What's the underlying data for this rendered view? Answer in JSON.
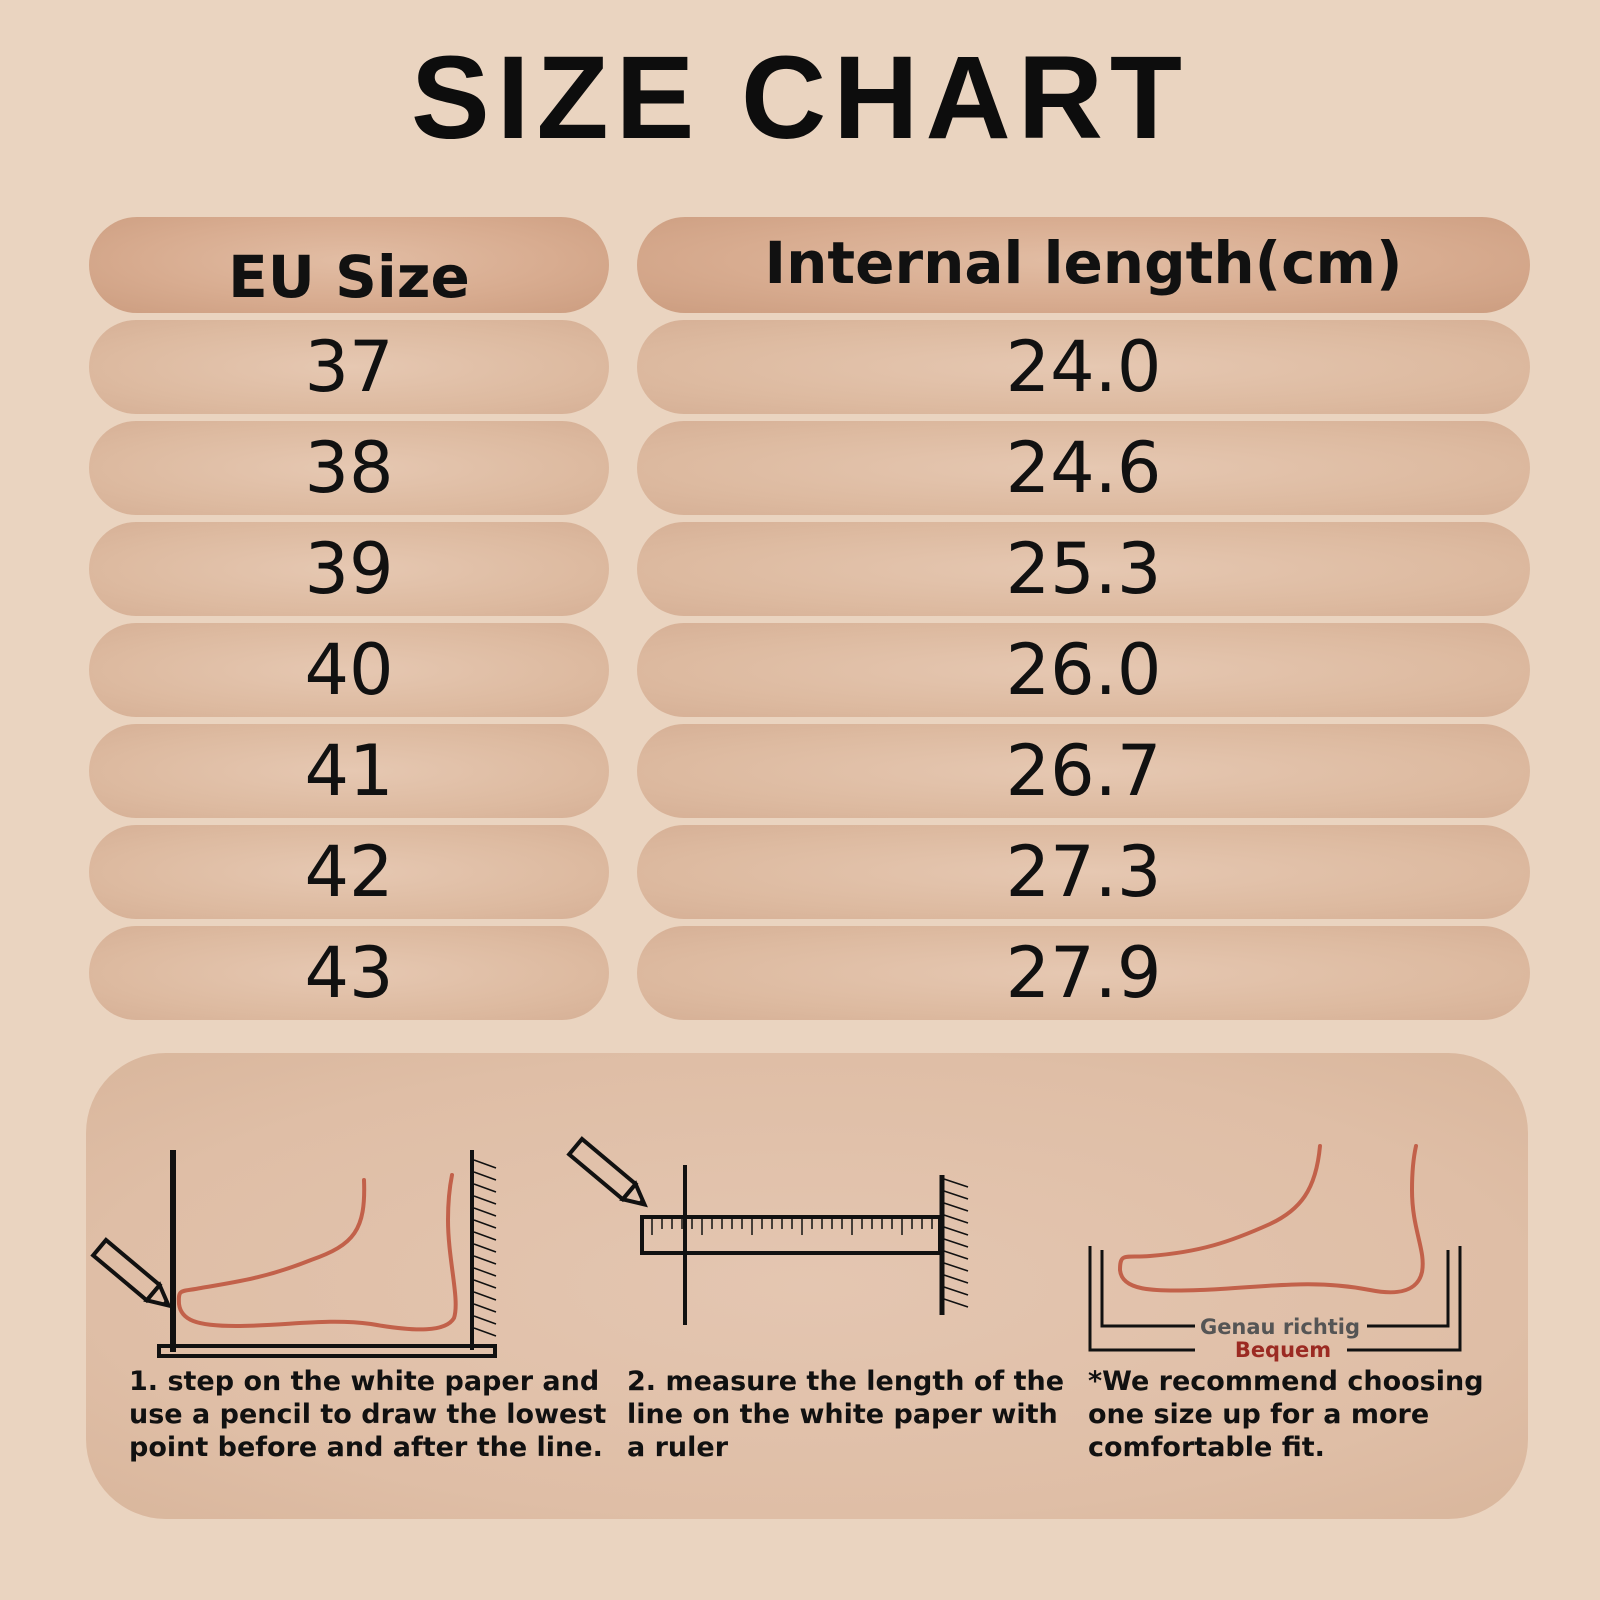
{
  "title": "SIZE CHART",
  "table": {
    "headers": {
      "eu_size": "EU Size",
      "internal_length": "Internal length(cm)"
    },
    "rows": [
      {
        "eu": "37",
        "length": "24.0"
      },
      {
        "eu": "38",
        "length": "24.6"
      },
      {
        "eu": "39",
        "length": "25.3"
      },
      {
        "eu": "40",
        "length": "26.0"
      },
      {
        "eu": "41",
        "length": "26.7"
      },
      {
        "eu": "42",
        "length": "27.3"
      },
      {
        "eu": "43",
        "length": "27.9"
      }
    ]
  },
  "instructions": {
    "step1": "1. step on the white paper and\nuse a pencil to draw the lowest\npoint before and after the line.",
    "step2": "2. measure the length of the\nline on the white paper with\na ruler",
    "note": "*We recommend choosing\none size up for a more\ncomfortable fit.",
    "fit_exact": "Genau richtig",
    "fit_comfortable": "Bequem"
  },
  "colors": {
    "background": "#ead4c0",
    "header_pill": "#d8ac90",
    "cell_pill": "#ddbaa0",
    "foot_outline": "#c2614a",
    "comfortable_label": "#9b2a22",
    "exact_label": "#555555"
  },
  "icons": [
    "pencil-icon",
    "ruler-icon",
    "foot-outline-icon",
    "wall-hatch-icon"
  ]
}
